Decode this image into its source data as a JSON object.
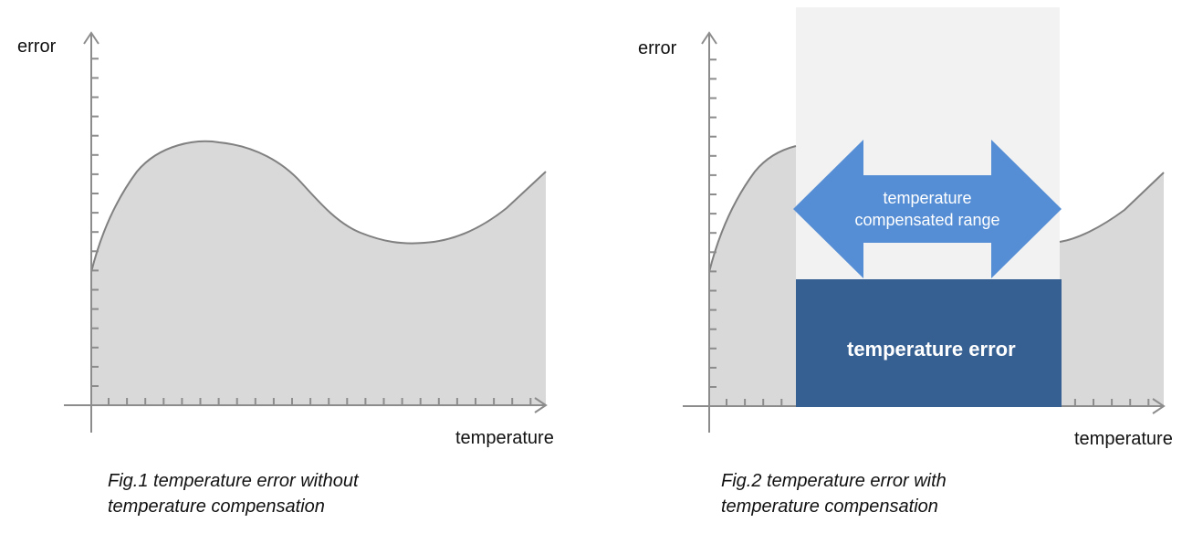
{
  "figure1": {
    "y_label": "error",
    "x_label": "temperature",
    "caption_line1": "Fig.1 temperature error without",
    "caption_line2": "temperature compensation"
  },
  "figure2": {
    "y_label": "error",
    "x_label": "temperature",
    "arrow_line1": "temperature",
    "arrow_line2": "compensated range",
    "error_box_label": "temperature error",
    "caption_line1": "Fig.2 temperature error with",
    "caption_line2": "temperature compensation"
  },
  "colors": {
    "area_fill": "#d9d9d9",
    "curve_stroke": "#808080",
    "axis": "#8c8c8c",
    "range_bg": "#f2f2f2",
    "arrow": "#558ed5",
    "error_box": "#376092"
  }
}
